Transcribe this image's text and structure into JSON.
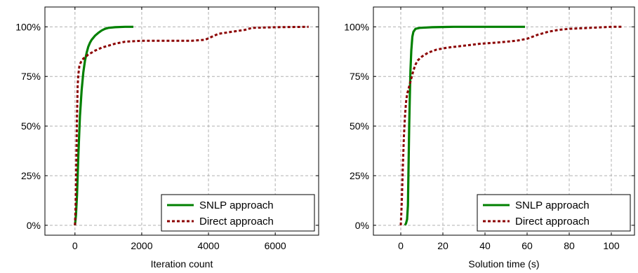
{
  "chart_data": [
    {
      "type": "line",
      "xlabel": "Iteration count",
      "ylabel": "",
      "xlim": [
        -900,
        7300
      ],
      "ylim": [
        -5,
        110
      ],
      "xticks": [
        0,
        2000,
        4000,
        6000
      ],
      "xtick_labels": [
        "0",
        "2000",
        "4000",
        "6000"
      ],
      "yticks": [
        0,
        25,
        50,
        75,
        100
      ],
      "ytick_labels": [
        "0%",
        "25%",
        "50%",
        "75%",
        "100%"
      ],
      "grid": true,
      "legend_position": "bottom-right",
      "series": [
        {
          "name": "SNLP approach",
          "color": "#008000",
          "style": "solid",
          "points": [
            [
              0,
              0
            ],
            [
              30,
              5
            ],
            [
              60,
              15
            ],
            [
              100,
              35
            ],
            [
              150,
              55
            ],
            [
              200,
              68
            ],
            [
              250,
              77
            ],
            [
              300,
              83
            ],
            [
              350,
              87
            ],
            [
              400,
              90
            ],
            [
              450,
              92
            ],
            [
              500,
              93.5
            ],
            [
              600,
              95.5
            ],
            [
              700,
              97
            ],
            [
              800,
              98.2
            ],
            [
              900,
              99
            ],
            [
              1000,
              99.5
            ],
            [
              1200,
              99.8
            ],
            [
              1500,
              100
            ],
            [
              1750,
              100
            ]
          ]
        },
        {
          "name": "Direct approach",
          "color": "#8b0000",
          "style": "dotted",
          "points": [
            [
              0,
              0
            ],
            [
              20,
              10
            ],
            [
              40,
              30
            ],
            [
              60,
              55
            ],
            [
              80,
              70
            ],
            [
              100,
              76
            ],
            [
              130,
              80
            ],
            [
              170,
              82
            ],
            [
              250,
              84
            ],
            [
              400,
              86
            ],
            [
              600,
              88
            ],
            [
              800,
              89.5
            ],
            [
              1000,
              90.5
            ],
            [
              1200,
              91.5
            ],
            [
              1500,
              92.5
            ],
            [
              2000,
              93
            ],
            [
              2500,
              93
            ],
            [
              3000,
              93
            ],
            [
              3500,
              93
            ],
            [
              3900,
              93.5
            ],
            [
              4100,
              95
            ],
            [
              4300,
              96.5
            ],
            [
              4700,
              97.5
            ],
            [
              5100,
              98.5
            ],
            [
              5300,
              99.5
            ],
            [
              6000,
              99.8
            ],
            [
              7000,
              100
            ]
          ]
        }
      ]
    },
    {
      "type": "line",
      "xlabel": "Solution time (s)",
      "ylabel": "",
      "xlim": [
        -13,
        111
      ],
      "ylim": [
        -5,
        110
      ],
      "xticks": [
        0,
        20,
        40,
        60,
        80,
        100
      ],
      "xtick_labels": [
        "0",
        "20",
        "40",
        "60",
        "80",
        "100"
      ],
      "yticks": [
        0,
        25,
        50,
        75,
        100
      ],
      "ytick_labels": [
        "0%",
        "25%",
        "50%",
        "75%",
        "100%"
      ],
      "grid": true,
      "legend_position": "bottom-right",
      "series": [
        {
          "name": "SNLP approach",
          "color": "#008000",
          "style": "solid",
          "points": [
            [
              2,
              0
            ],
            [
              2.5,
              1
            ],
            [
              3,
              3
            ],
            [
              3.4,
              10
            ],
            [
              3.7,
              30
            ],
            [
              4,
              50
            ],
            [
              4.3,
              65
            ],
            [
              4.6,
              78
            ],
            [
              5,
              88
            ],
            [
              5.5,
              95
            ],
            [
              6,
              97.5
            ],
            [
              7,
              99
            ],
            [
              9,
              99.5
            ],
            [
              15,
              99.8
            ],
            [
              25,
              100
            ],
            [
              59,
              100
            ]
          ]
        },
        {
          "name": "Direct approach",
          "color": "#8b0000",
          "style": "dotted",
          "points": [
            [
              0,
              0
            ],
            [
              0.5,
              12
            ],
            [
              1,
              30
            ],
            [
              1.5,
              45
            ],
            [
              2,
              55
            ],
            [
              2.5,
              62
            ],
            [
              3,
              66
            ],
            [
              4,
              70
            ],
            [
              5,
              74
            ],
            [
              6,
              78
            ],
            [
              7,
              81
            ],
            [
              8,
              83
            ],
            [
              10,
              85
            ],
            [
              13,
              87
            ],
            [
              17,
              88.5
            ],
            [
              22,
              89.5
            ],
            [
              30,
              90.5
            ],
            [
              38,
              91.5
            ],
            [
              45,
              92
            ],
            [
              50,
              92.5
            ],
            [
              55,
              93
            ],
            [
              60,
              94
            ],
            [
              65,
              96
            ],
            [
              70,
              97.5
            ],
            [
              75,
              98.5
            ],
            [
              80,
              99
            ],
            [
              90,
              99.5
            ],
            [
              100,
              100
            ],
            [
              105,
              100
            ]
          ]
        }
      ]
    }
  ]
}
